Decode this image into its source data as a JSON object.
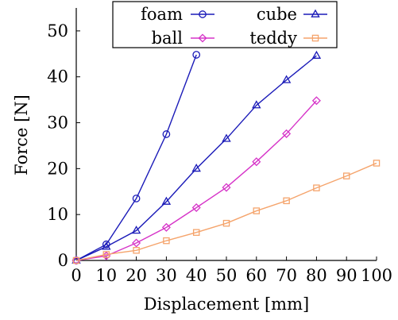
{
  "chart_data": {
    "type": "line",
    "xlabel": "Displacement [mm]",
    "ylabel": "Force [N]",
    "xlim": [
      0,
      100
    ],
    "ylim": [
      0,
      55
    ],
    "xticks": [
      0,
      10,
      20,
      30,
      40,
      50,
      60,
      70,
      80,
      90,
      100
    ],
    "yticks": [
      0,
      10,
      20,
      30,
      40,
      50
    ],
    "grid": false,
    "legend_position": "top",
    "series": [
      {
        "name": "foam",
        "color": "#1a1ab8",
        "marker": "circle",
        "x": [
          0,
          10,
          20,
          30,
          40
        ],
        "y": [
          0,
          3.5,
          13.5,
          27.5,
          44.8
        ]
      },
      {
        "name": "cube",
        "color": "#1a1ab8",
        "marker": "triangle",
        "x": [
          0,
          10,
          20,
          30,
          40,
          50,
          60,
          70,
          80
        ],
        "y": [
          0,
          3.0,
          6.5,
          12.8,
          20.0,
          26.5,
          33.8,
          39.3,
          44.6
        ]
      },
      {
        "name": "ball",
        "color": "#d633c8",
        "marker": "diamond",
        "x": [
          0,
          10,
          20,
          30,
          40,
          50,
          60,
          70,
          80
        ],
        "y": [
          0,
          1.0,
          3.8,
          7.2,
          11.5,
          15.9,
          21.5,
          27.6,
          34.8
        ]
      },
      {
        "name": "teddy",
        "color": "#f5a46c",
        "marker": "square",
        "x": [
          0,
          10,
          20,
          30,
          40,
          50,
          60,
          70,
          80,
          90,
          100
        ],
        "y": [
          0,
          1.3,
          2.2,
          4.3,
          6.1,
          8.1,
          10.8,
          13.0,
          15.8,
          18.4,
          21.2
        ]
      }
    ]
  }
}
